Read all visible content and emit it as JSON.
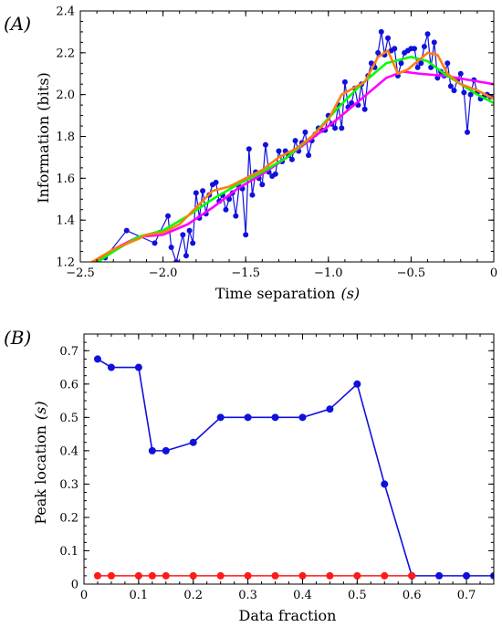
{
  "chart_data": [
    {
      "panel_label": "(A)",
      "type": "line",
      "xlabel": "Time separation",
      "xlabel_unit": "(s)",
      "ylabel": "Information  (bits)",
      "xlim": [
        -2.5,
        0
      ],
      "ylim": [
        1.2,
        2.4
      ],
      "xticks": [
        -2.5,
        -2.0,
        -1.5,
        -1.0,
        -0.5,
        0
      ],
      "xtick_labels": [
        "−2.5",
        "−2.0",
        "−1.5",
        "−1.0",
        "−0.5",
        "0"
      ],
      "yticks": [
        1.2,
        1.4,
        1.6,
        1.8,
        2.0,
        2.2,
        2.4
      ],
      "ytick_labels": [
        "1.2",
        "1.4",
        "1.6",
        "1.8",
        "2.0",
        "2.2",
        "2.4"
      ],
      "grid": false,
      "series": [
        {
          "color": "#1010dd",
          "style": "line+markers",
          "x": [
            -2.35,
            -2.22,
            -2.05,
            -2.02,
            -1.97,
            -1.95,
            -1.92,
            -1.88,
            -1.86,
            -1.84,
            -1.82,
            -1.8,
            -1.78,
            -1.76,
            -1.74,
            -1.72,
            -1.7,
            -1.68,
            -1.66,
            -1.64,
            -1.62,
            -1.6,
            -1.58,
            -1.56,
            -1.54,
            -1.52,
            -1.5,
            -1.48,
            -1.46,
            -1.44,
            -1.42,
            -1.4,
            -1.38,
            -1.36,
            -1.34,
            -1.32,
            -1.3,
            -1.28,
            -1.26,
            -1.24,
            -1.22,
            -1.2,
            -1.18,
            -1.16,
            -1.14,
            -1.12,
            -1.1,
            -1.08,
            -1.06,
            -1.04,
            -1.02,
            -1.0,
            -0.98,
            -0.96,
            -0.94,
            -0.92,
            -0.9,
            -0.88,
            -0.86,
            -0.84,
            -0.82,
            -0.8,
            -0.78,
            -0.76,
            -0.74,
            -0.72,
            -0.7,
            -0.68,
            -0.66,
            -0.64,
            -0.62,
            -0.6,
            -0.58,
            -0.56,
            -0.54,
            -0.52,
            -0.5,
            -0.48,
            -0.46,
            -0.44,
            -0.42,
            -0.4,
            -0.38,
            -0.36,
            -0.34,
            -0.32,
            -0.3,
            -0.28,
            -0.26,
            -0.24,
            -0.22,
            -0.2,
            -0.18,
            -0.16,
            -0.14,
            -0.12,
            -0.1,
            -0.08,
            -0.06,
            -0.04,
            -0.02
          ],
          "y": [
            1.22,
            1.35,
            1.29,
            1.34,
            1.42,
            1.27,
            1.2,
            1.33,
            1.23,
            1.35,
            1.29,
            1.53,
            1.41,
            1.54,
            1.43,
            1.52,
            1.57,
            1.58,
            1.49,
            1.52,
            1.45,
            1.5,
            1.53,
            1.42,
            1.56,
            1.55,
            1.33,
            1.74,
            1.52,
            1.63,
            1.6,
            1.57,
            1.76,
            1.63,
            1.61,
            1.62,
            1.73,
            1.68,
            1.73,
            1.71,
            1.69,
            1.78,
            1.73,
            1.77,
            1.82,
            1.71,
            1.78,
            1.81,
            1.84,
            1.83,
            1.83,
            1.9,
            1.86,
            1.84,
            1.95,
            1.84,
            2.06,
            1.94,
            1.96,
            2.03,
            1.95,
            2.05,
            1.93,
            2.09,
            2.15,
            2.13,
            2.2,
            2.3,
            2.19,
            2.27,
            2.21,
            2.22,
            2.09,
            2.15,
            2.2,
            2.21,
            2.22,
            2.22,
            2.13,
            2.15,
            2.23,
            2.29,
            2.13,
            2.25,
            2.08,
            2.11,
            2.09,
            2.15,
            2.04,
            2.02,
            2.07,
            2.1,
            2.01,
            1.82,
            2.0,
            2.07,
            2.01,
            1.98,
            1.99,
            2.0,
            1.99
          ]
        },
        {
          "color": "#00ff00",
          "style": "line",
          "x": [
            -2.45,
            -2.3,
            -2.15,
            -2.0,
            -1.85,
            -1.7,
            -1.55,
            -1.4,
            -1.25,
            -1.1,
            -0.95,
            -0.8,
            -0.65,
            -0.5,
            -0.4,
            -0.3,
            -0.2,
            -0.1,
            0.0
          ],
          "y": [
            1.17,
            1.25,
            1.32,
            1.35,
            1.42,
            1.5,
            1.57,
            1.63,
            1.7,
            1.8,
            1.93,
            2.05,
            2.15,
            2.18,
            2.16,
            2.1,
            2.05,
            2.0,
            1.96
          ]
        },
        {
          "color": "#ff00ff",
          "style": "line",
          "x": [
            -2.45,
            -2.3,
            -2.15,
            -2.0,
            -1.85,
            -1.7,
            -1.55,
            -1.4,
            -1.25,
            -1.1,
            -0.95,
            -0.8,
            -0.65,
            -0.55,
            -0.45,
            -0.3,
            -0.15,
            0.0
          ],
          "y": [
            1.18,
            1.26,
            1.32,
            1.33,
            1.38,
            1.46,
            1.55,
            1.62,
            1.7,
            1.79,
            1.88,
            1.98,
            2.08,
            2.11,
            2.1,
            2.09,
            2.07,
            2.05
          ]
        },
        {
          "color": "#ff7f0e",
          "style": "line",
          "x": [
            -2.45,
            -2.3,
            -2.15,
            -2.1,
            -2.0,
            -1.9,
            -1.8,
            -1.7,
            -1.6,
            -1.5,
            -1.4,
            -1.3,
            -1.2,
            -1.1,
            -1.0,
            -0.92,
            -0.85,
            -0.78,
            -0.7,
            -0.64,
            -0.58,
            -0.52,
            -0.46,
            -0.4,
            -0.34,
            -0.28,
            -0.2,
            -0.1,
            0.0
          ],
          "y": [
            1.19,
            1.26,
            1.31,
            1.33,
            1.34,
            1.38,
            1.46,
            1.54,
            1.56,
            1.6,
            1.64,
            1.7,
            1.74,
            1.8,
            1.88,
            2.0,
            2.03,
            2.06,
            2.18,
            2.21,
            2.1,
            2.12,
            2.16,
            2.2,
            2.19,
            2.1,
            2.05,
            2.02,
            1.98
          ]
        }
      ]
    },
    {
      "panel_label": "(B)",
      "type": "line",
      "xlabel": "Data fraction",
      "ylabel": "Peak location",
      "ylabel_unit": "(s)",
      "xlim": [
        0,
        0.75
      ],
      "ylim": [
        0,
        0.75
      ],
      "xticks": [
        0,
        0.1,
        0.2,
        0.3,
        0.4,
        0.5,
        0.6,
        0.7
      ],
      "xtick_labels": [
        "0",
        "0.1",
        "0.2",
        "0.3",
        "0.4",
        "0.5",
        "0.6",
        "0.7"
      ],
      "yticks": [
        0,
        0.1,
        0.2,
        0.3,
        0.4,
        0.5,
        0.6,
        0.7
      ],
      "ytick_labels": [
        "0",
        "0.1",
        "0.2",
        "0.3",
        "0.4",
        "0.5",
        "0.6",
        "0.7"
      ],
      "grid": false,
      "series": [
        {
          "color": "#1010dd",
          "style": "line+markers",
          "x": [
            0.025,
            0.05,
            0.1,
            0.125,
            0.15,
            0.2,
            0.25,
            0.3,
            0.35,
            0.4,
            0.45,
            0.5,
            0.55,
            0.6,
            0.65,
            0.7,
            0.75
          ],
          "y": [
            0.675,
            0.65,
            0.65,
            0.4,
            0.4,
            0.425,
            0.5,
            0.5,
            0.5,
            0.5,
            0.525,
            0.6,
            0.3,
            0.025,
            0.025,
            0.025,
            0.025
          ]
        },
        {
          "color": "#ff1a1a",
          "style": "line+markers",
          "x": [
            0.025,
            0.05,
            0.1,
            0.125,
            0.15,
            0.2,
            0.25,
            0.3,
            0.35,
            0.4,
            0.45,
            0.5,
            0.55,
            0.6
          ],
          "y": [
            0.025,
            0.025,
            0.025,
            0.025,
            0.025,
            0.025,
            0.025,
            0.025,
            0.025,
            0.025,
            0.025,
            0.025,
            0.025,
            0.025
          ]
        }
      ]
    }
  ]
}
